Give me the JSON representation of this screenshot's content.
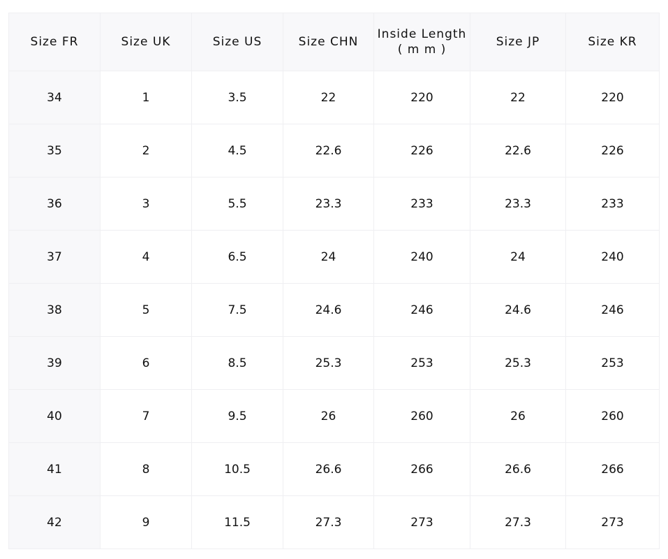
{
  "table": {
    "headers": [
      "Size FR",
      "Size UK",
      "Size US",
      "Size CHN",
      "Inside Length\n( m m )",
      "Size JP",
      "Size KR"
    ],
    "rows": [
      [
        "34",
        "1",
        "3.5",
        "22",
        "220",
        "22",
        "220"
      ],
      [
        "35",
        "2",
        "4.5",
        "22.6",
        "226",
        "22.6",
        "226"
      ],
      [
        "36",
        "3",
        "5.5",
        "23.3",
        "233",
        "23.3",
        "233"
      ],
      [
        "37",
        "4",
        "6.5",
        "24",
        "240",
        "24",
        "240"
      ],
      [
        "38",
        "5",
        "7.5",
        "24.6",
        "246",
        "24.6",
        "246"
      ],
      [
        "39",
        "6",
        "8.5",
        "25.3",
        "253",
        "25.3",
        "253"
      ],
      [
        "40",
        "7",
        "9.5",
        "26",
        "260",
        "26",
        "260"
      ],
      [
        "41",
        "8",
        "10.5",
        "26.6",
        "266",
        "26.6",
        "266"
      ],
      [
        "42",
        "9",
        "11.5",
        "27.3",
        "273",
        "27.3",
        "273"
      ]
    ]
  }
}
